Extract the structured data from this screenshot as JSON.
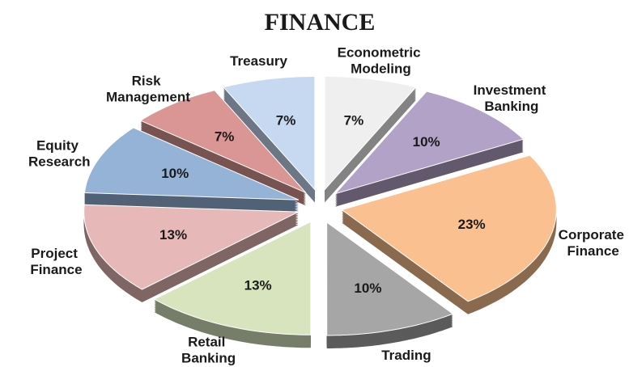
{
  "chart_data": {
    "type": "pie",
    "title": "FINANCE",
    "categories": [
      "Econometric Modeling",
      "Investment Banking",
      "Corporate Finance",
      "Trading",
      "Retail Banking",
      "Project Finance",
      "Equity Research",
      "Risk Management",
      "Treasury"
    ],
    "values": [
      7,
      10,
      23,
      10,
      13,
      13,
      10,
      7,
      7
    ],
    "value_labels": [
      "7%",
      "10%",
      "23%",
      "10%",
      "13%",
      "13%",
      "10%",
      "7%",
      "7%"
    ],
    "colors": [
      "#efefef",
      "#b3a2c7",
      "#fac090",
      "#a6a6a6",
      "#d7e4bd",
      "#e6b9b8",
      "#95b3d7",
      "#d99694",
      "#c6d9f1"
    ]
  }
}
